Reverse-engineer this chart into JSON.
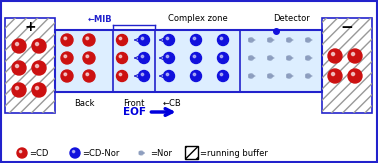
{
  "bg_color": "#ffffff",
  "border_color": "#2222cc",
  "tube_color": "#ddeeff",
  "cd_color": "#cc1111",
  "cd_nor_color": "#1111dd",
  "hatch_color": "#888888",
  "mib_text": "←MIB",
  "complex_text": "Complex zone",
  "detector_text": "Detector",
  "back_text": "Back",
  "front_text": "Front",
  "cb_text": "←CB",
  "eof_color": "#0000dd",
  "legend_cd": "=CD",
  "legend_cdnor": "=CD-Nor",
  "legend_nor": "=Nor",
  "legend_rb": "=running buffer",
  "figw": 3.78,
  "figh": 1.63,
  "dpi": 100
}
